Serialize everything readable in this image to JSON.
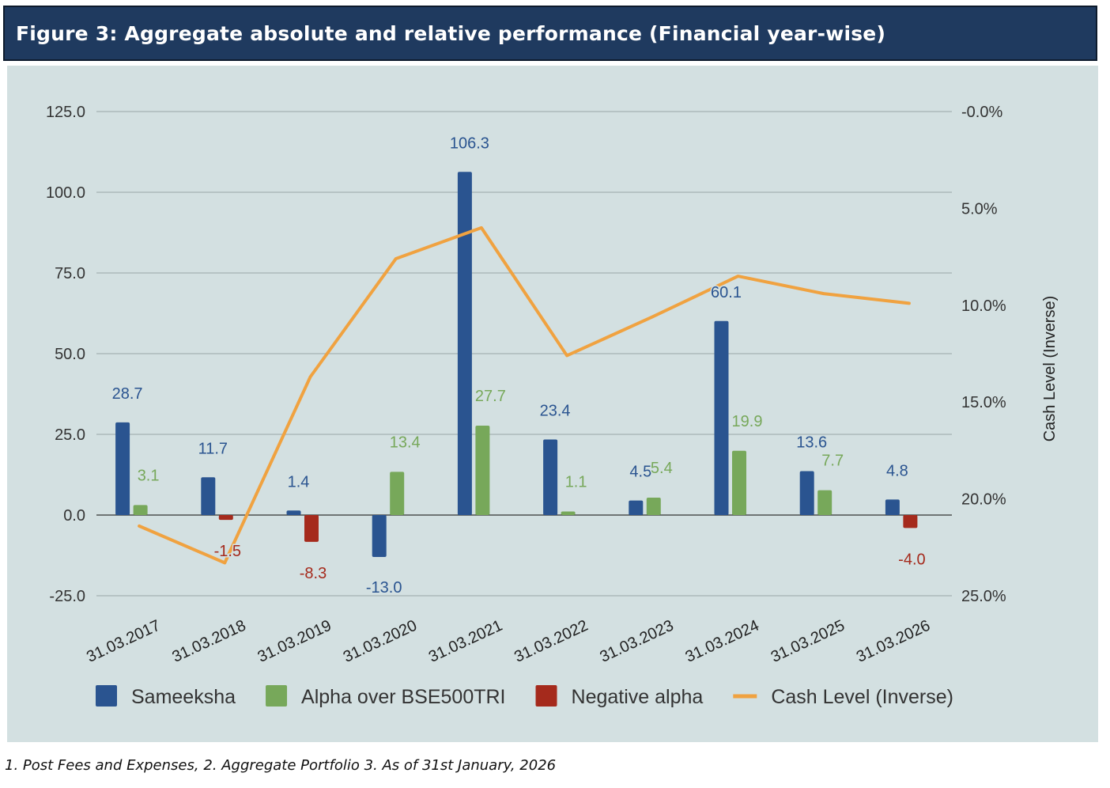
{
  "title": "Figure 3:  Aggregate absolute and relative performance (Financial year-wise)",
  "footnote": "1. Post Fees and Expenses, 2. Aggregate Portfolio  3. As of 31st January, 2026",
  "colors": {
    "sameeksha": "#2a5490",
    "alpha": "#77a85a",
    "negative_alpha": "#a52a1c",
    "cash": "#f0a240",
    "panel": "#d3e0e1",
    "grid": "#9aa6a7",
    "title_bar": "#1f3a5f"
  },
  "chart_data": {
    "type": "bar",
    "categories": [
      "31.03.2017",
      "31.03.2018",
      "31.03.2019",
      "31.03.2020",
      "31.03.2021",
      "31.03.2022",
      "31.03.2023",
      "31.03.2024",
      "31.03.2025",
      "31.03.2026"
    ],
    "y_ticks": [
      "125.0",
      "100.0",
      "75.0",
      "50.0",
      "25.0",
      "0.0",
      "-25.0"
    ],
    "y_tick_values": [
      125,
      100,
      75,
      50,
      25,
      0,
      -25
    ],
    "ylim": [
      -25,
      125
    ],
    "y2_ticks": [
      "-0.0%",
      "5.0%",
      "10.0%",
      "15.0%",
      "20.0%",
      "25.0%"
    ],
    "y2_tick_values": [
      0,
      5,
      10,
      15,
      20,
      25
    ],
    "y2lim": [
      0,
      25
    ],
    "y2_inverted": true,
    "y2label": "Cash Level (Inverse)",
    "grid": true,
    "legend_position": "bottom",
    "series": [
      {
        "name": "Sameeksha",
        "kind": "bar",
        "color_key": "sameeksha",
        "values": [
          28.7,
          11.7,
          1.4,
          -13.0,
          106.3,
          23.4,
          4.5,
          60.1,
          13.6,
          4.8
        ],
        "labels": [
          "28.7",
          "11.7",
          "1.4",
          "-13.0",
          "106.3",
          "23.4",
          "4.5",
          "60.1",
          "13.6",
          "4.8"
        ]
      },
      {
        "name": "Alpha over BSE500TRI",
        "kind": "bar",
        "color_key": "alpha",
        "values": [
          3.1,
          null,
          null,
          13.4,
          27.7,
          1.1,
          5.4,
          19.9,
          7.7,
          null
        ],
        "labels": [
          "3.1",
          null,
          null,
          "13.4",
          "27.7",
          "1.1",
          "5.4",
          "19.9",
          "7.7",
          null
        ]
      },
      {
        "name": "Negative alpha",
        "kind": "bar",
        "color_key": "negative_alpha",
        "values": [
          null,
          -1.5,
          -8.3,
          null,
          null,
          null,
          null,
          null,
          null,
          -4.0
        ],
        "labels": [
          null,
          "-1.5",
          "-8.3",
          null,
          null,
          null,
          null,
          null,
          null,
          "-4.0"
        ]
      },
      {
        "name": "Cash Level (Inverse)",
        "kind": "line",
        "axis": "y2",
        "color_key": "cash",
        "values": [
          21.4,
          23.3,
          13.7,
          7.6,
          6.0,
          12.6,
          10.6,
          8.5,
          9.4,
          9.9
        ]
      }
    ]
  }
}
